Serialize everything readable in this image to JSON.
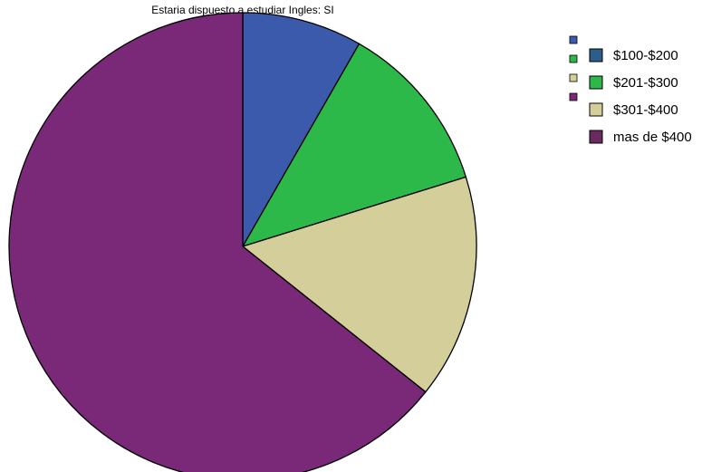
{
  "chart_data": {
    "type": "pie",
    "title": "Estaria dispuesto a estudiar Ingles: SI",
    "slice_order": "clockwise from 12 o'clock",
    "categories": [
      "$100-$200",
      "$201-$300",
      "$301-$400",
      "mas de $400"
    ],
    "values": [
      8.3,
      11.9,
      15.5,
      64.3
    ],
    "unit": "percent (estimated)",
    "colors": [
      "#3c5aac",
      "#2db84a",
      "#d4cf9a",
      "#7a2878"
    ],
    "legend_colors": [
      "#2c5e8c",
      "#2db84a",
      "#d4cf9a",
      "#6a2a60"
    ],
    "legend": {
      "placement": "top-right",
      "labels": [
        "$100-$200",
        "$201-$300",
        "$301-$400",
        "mas de $400"
      ]
    }
  }
}
